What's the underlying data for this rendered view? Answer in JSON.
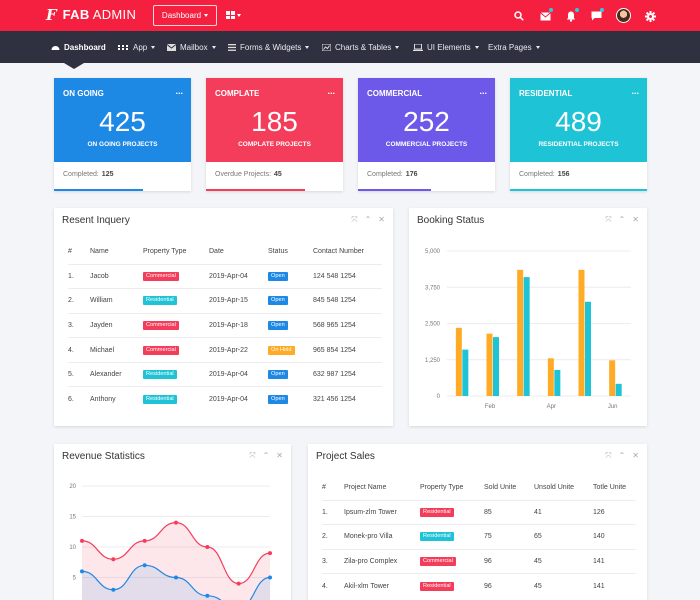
{
  "brand": {
    "mark": "F",
    "name_bold": "FAB",
    "name_rest": " ADMIN"
  },
  "topbar": {
    "dashboard_label": "Dashboard"
  },
  "nav": {
    "items": [
      {
        "label": "Dashboard",
        "icon": "dashboard-icon"
      },
      {
        "label": "App",
        "icon": "apps-icon"
      },
      {
        "label": "Mailbox",
        "icon": "mail-icon"
      },
      {
        "label": "Forms & Widgets",
        "icon": "list-icon"
      },
      {
        "label": "Charts & Tables",
        "icon": "chart-icon"
      },
      {
        "label": "UI Elements",
        "icon": "laptop-icon"
      },
      {
        "label": "Extra Pages",
        "icon": ""
      }
    ]
  },
  "stats": [
    {
      "title": "ON GOING",
      "more": "...",
      "value": "425",
      "subtitle": "ON GOING PROJECTS",
      "footer_label": "Completed:",
      "footer_value": "125",
      "color": "#1e88e5",
      "progress": 0.65
    },
    {
      "title": "COMPLATE",
      "more": "...",
      "value": "185",
      "subtitle": "COMPLATE PROJECTS",
      "footer_label": "Overdue Projects:",
      "footer_value": "45",
      "color": "#f43d5a",
      "progress": 0.72
    },
    {
      "title": "COMMERCIAL",
      "more": "...",
      "value": "252",
      "subtitle": "COMMERCIAL PROJECTS",
      "footer_label": "Completed:",
      "footer_value": "176",
      "color": "#6c59e9",
      "progress": 0.53
    },
    {
      "title": "RESIDENTIAL",
      "more": "...",
      "value": "489",
      "subtitle": "RESIDENTIAL PROJECTS",
      "footer_label": "Completed:",
      "footer_value": "156",
      "color": "#1fc3d6",
      "progress": 1.0
    }
  ],
  "inquery": {
    "title": "Resent Inquery",
    "headers": [
      "#",
      "Name",
      "Property Type",
      "Date",
      "Status",
      "Contact Number"
    ],
    "rows": [
      {
        "num": "1.",
        "name": "Jacob",
        "type": "Commercial",
        "type_color": "#f43d5a",
        "date": "2019-Apr-04",
        "status": "Open",
        "status_color": "#1e88e5",
        "contact": "124 548 1254"
      },
      {
        "num": "2.",
        "name": "William",
        "type": "Residential",
        "type_color": "#1fc3d6",
        "date": "2019-Apr-15",
        "status": "Open",
        "status_color": "#1e88e5",
        "contact": "845 548 1254"
      },
      {
        "num": "3.",
        "name": "Jayden",
        "type": "Commercial",
        "type_color": "#f43d5a",
        "date": "2019-Apr-18",
        "status": "Open",
        "status_color": "#1e88e5",
        "contact": "568 965 1254"
      },
      {
        "num": "4.",
        "name": "Michael",
        "type": "Commercial",
        "type_color": "#f43d5a",
        "date": "2019-Apr-22",
        "status": "On Hold",
        "status_color": "#ffab26",
        "contact": "965 854 1254"
      },
      {
        "num": "5.",
        "name": "Alexander",
        "type": "Residential",
        "type_color": "#1fc3d6",
        "date": "2019-Apr-04",
        "status": "Open",
        "status_color": "#1e88e5",
        "contact": "632 987 1254"
      },
      {
        "num": "6.",
        "name": "Anthony",
        "type": "Residential",
        "type_color": "#1fc3d6",
        "date": "2019-Apr-04",
        "status": "Open",
        "status_color": "#1e88e5",
        "contact": "321 456 1254"
      }
    ]
  },
  "booking": {
    "title": "Booking Status"
  },
  "revenue": {
    "title": "Revenue Statistics"
  },
  "sales": {
    "title": "Project Sales",
    "headers": [
      "#",
      "Project Name",
      "Property Type",
      "Sold Unite",
      "Unsold Unite",
      "Totle Unite"
    ],
    "rows": [
      {
        "num": "1.",
        "name": "Ipsum-zlm Tower",
        "type": "Residential",
        "type_color": "#f43d5a",
        "sold": "85",
        "unsold": "41",
        "total": "126"
      },
      {
        "num": "2.",
        "name": "Monek-pro Villa",
        "type": "Residential",
        "type_color": "#1fc3d6",
        "sold": "75",
        "unsold": "65",
        "total": "140"
      },
      {
        "num": "3.",
        "name": "Zila-pro Complex",
        "type": "Commercial",
        "type_color": "#f43d5a",
        "sold": "96",
        "unsold": "45",
        "total": "141"
      },
      {
        "num": "4.",
        "name": "Akil-xlm Tower",
        "type": "Residential",
        "type_color": "#f43d5a",
        "sold": "96",
        "unsold": "45",
        "total": "141"
      }
    ]
  },
  "colors": {
    "topbar": "#f5203f",
    "nav": "#2f3040",
    "orange": "#ffab26",
    "cyan": "#1fc3d6",
    "red": "#f43d5a",
    "blue": "#1e88e5"
  },
  "chart_data": [
    {
      "type": "bar",
      "yticks": [
        "0",
        "1,250",
        "2,500",
        "3,750",
        "5,000"
      ],
      "ylim": [
        0,
        5000
      ],
      "xtick_labels": [
        "Feb",
        "Apr",
        "Jun"
      ],
      "series": [
        {
          "values": [
            2350,
            2150,
            4350,
            1300,
            4350,
            1230
          ]
        },
        {
          "values": [
            1600,
            2030,
            4100,
            900,
            3250,
            420
          ]
        }
      ]
    },
    {
      "type": "line",
      "yticks": [
        "5",
        "10",
        "15",
        "20"
      ],
      "ylim": [
        0,
        20
      ],
      "series": [
        {
          "values": [
            11,
            8,
            11,
            14,
            10,
            4,
            9
          ]
        },
        {
          "values": [
            6,
            3,
            7,
            5,
            2,
            0,
            5
          ]
        }
      ]
    }
  ]
}
